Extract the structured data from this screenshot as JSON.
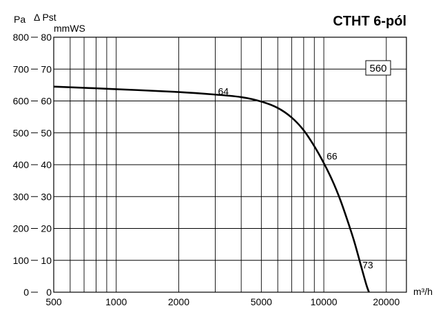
{
  "chart_data": {
    "type": "line",
    "title": "CTHT 6-pól",
    "model_label": "560",
    "x_axis": {
      "unit": "m³/h",
      "scale": "log",
      "range": [
        500,
        25000
      ],
      "ticks": [
        500,
        1000,
        2000,
        5000,
        10000,
        20000
      ],
      "tick_labels": [
        "500",
        "1000",
        "2000",
        "5000",
        "10000",
        "20000"
      ]
    },
    "y_axis_left": {
      "unit": "Pa",
      "label": "Δ Pst",
      "range": [
        0,
        800
      ],
      "ticks": [
        0,
        100,
        200,
        300,
        400,
        500,
        600,
        700,
        800
      ],
      "tick_labels": [
        "0",
        "100",
        "200",
        "300",
        "400",
        "500",
        "600",
        "700",
        "800"
      ]
    },
    "y_axis_right": {
      "unit": "mmWS",
      "range": [
        0,
        80
      ],
      "ticks": [
        0,
        10,
        20,
        30,
        40,
        50,
        60,
        70,
        80
      ],
      "tick_labels": [
        "0",
        "10",
        "20",
        "30",
        "40",
        "50",
        "60",
        "70",
        "80"
      ]
    },
    "grid": true,
    "series": [
      {
        "x": [
          500,
          1000,
          2000,
          3000,
          4000,
          5000,
          6000,
          7000,
          8000,
          9000,
          10000,
          11000,
          12000,
          13000,
          14000,
          15000,
          16000,
          16500
        ],
        "y": [
          645,
          637,
          628,
          620,
          612,
          598,
          578,
          548,
          508,
          458,
          405,
          350,
          290,
          225,
          160,
          90,
          25,
          0
        ]
      }
    ],
    "annotations": [
      {
        "text": "64",
        "x": 3000,
        "y": 620
      },
      {
        "text": "66",
        "x": 10000,
        "y": 405
      },
      {
        "text": "73",
        "x": 15000,
        "y": 90
      }
    ]
  }
}
